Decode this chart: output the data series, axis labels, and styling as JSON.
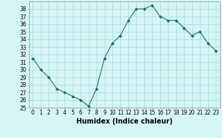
{
  "x": [
    0,
    1,
    2,
    3,
    4,
    5,
    6,
    7,
    8,
    9,
    10,
    11,
    12,
    13,
    14,
    15,
    16,
    17,
    18,
    19,
    20,
    21,
    22,
    23
  ],
  "y": [
    31.5,
    30.0,
    29.0,
    27.5,
    27.0,
    26.5,
    26.0,
    25.2,
    27.5,
    31.5,
    33.5,
    34.5,
    36.5,
    38.0,
    38.0,
    38.5,
    37.0,
    36.5,
    36.5,
    35.5,
    34.5,
    35.0,
    33.5,
    32.5
  ],
  "line_color": "#1a6b5a",
  "marker": "D",
  "marker_size": 2,
  "bg_color": "#d6f5f5",
  "grid_color": "#aadddd",
  "xlabel": "Humidex (Indice chaleur)",
  "xlabel_fontsize": 7,
  "tick_fontsize": 5.5,
  "xlim": [
    -0.5,
    23.5
  ],
  "ylim": [
    25,
    39
  ],
  "yticks": [
    25,
    26,
    27,
    28,
    29,
    30,
    31,
    32,
    33,
    34,
    35,
    36,
    37,
    38
  ],
  "xticks": [
    0,
    1,
    2,
    3,
    4,
    5,
    6,
    7,
    8,
    9,
    10,
    11,
    12,
    13,
    14,
    15,
    16,
    17,
    18,
    19,
    20,
    21,
    22,
    23
  ]
}
